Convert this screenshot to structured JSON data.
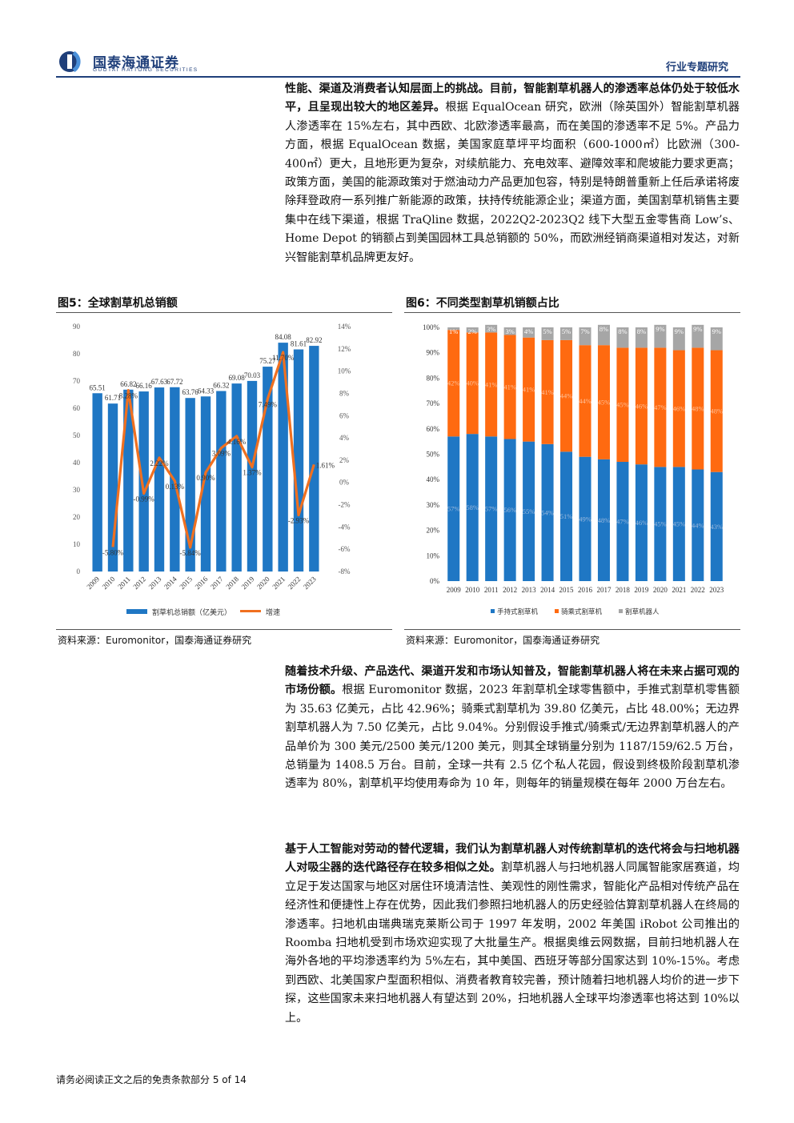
{
  "header": {
    "logo_cn": "国泰海通证券",
    "logo_en": "GUOTAI HAITONG SECURITIES",
    "section": "行业专题研究"
  },
  "para1": {
    "bold": "性能、渠道及消费者认知层面上的挑战。目前，智能割草机器人的渗透率总体仍处于较低水平，且呈现出较大的地区差异。",
    "text": "根据 EqualOcean 研究，欧洲（除英国外）智能割草机器人渗透率在 15%左右，其中西欧、北欧渗透率最高，而在美国的渗透率不足 5%。产品力方面，根据 EqualOcean 数据，美国家庭草坪平均面积（600-1000㎡）比欧洲（300-400㎡）更大，且地形更为复杂，对续航能力、充电效率、避障效率和爬坡能力要求更高；政策方面，美国的能源政策对于燃油动力产品更加包容，特别是特朗普重新上任后承诺将废除拜登政府一系列推广新能源的政策，扶持传统能源企业；渠道方面，美国割草机销售主要集中在线下渠道，根据 TraQline 数据，2022Q2-2023Q2 线下大型五金零售商 Low’s、Home Depot 的销额占到美国园林工具总销额的 50%，而欧洲经销商渠道相对发达，对新兴智能割草机品牌更友好。"
  },
  "fig5": {
    "title": "图5：全球割草机总销额",
    "source": "资料来源：Euromonitor，国泰海通证券研究"
  },
  "fig6": {
    "title": "图6：不同类型割草机销额占比",
    "source": "资料来源：Euromonitor，国泰海通证券研究"
  },
  "chart_data": [
    {
      "type": "bar",
      "categories": [
        "2009",
        "2010",
        "2011",
        "2012",
        "2013",
        "2014",
        "2015",
        "2016",
        "2017",
        "2018",
        "2019",
        "2020",
        "2021",
        "2022",
        "2023"
      ],
      "series": [
        {
          "name": "割草机总销额（亿美元）",
          "type": "bar",
          "axis": "left",
          "values": [
            65.51,
            61.71,
            66.82,
            66.16,
            67.63,
            67.72,
            63.76,
            64.33,
            66.32,
            69.08,
            70.03,
            75.27,
            84.08,
            81.61,
            82.92
          ],
          "labels": [
            "65.51",
            "61.71",
            "66.82",
            "66.16",
            "67.63",
            "67.72",
            "63.76",
            "64.33",
            "66.32",
            "69.08",
            "70.03",
            "75.27",
            "84.08",
            "81.61",
            "82.92"
          ]
        },
        {
          "name": "增速",
          "type": "line",
          "axis": "right",
          "values": [
            null,
            -5.8,
            8.28,
            -0.99,
            2.22,
            0.13,
            -5.84,
            0.9,
            3.09,
            4.16,
            1.37,
            7.49,
            11.7,
            -2.93,
            1.61
          ],
          "labels": [
            "",
            "-5.80%",
            "8.28%",
            "-0.99%",
            "2.22%",
            "0.13%",
            "-5.84%",
            "0.90%",
            "3.09%",
            "4.16%",
            "1.37%",
            "7.49%",
            "11.70%",
            "-2.93%",
            "1.61%"
          ]
        }
      ],
      "ylim": [
        0,
        90
      ],
      "y_ticks": [
        "0",
        "10",
        "20",
        "30",
        "40",
        "50",
        "60",
        "70",
        "80",
        "90"
      ],
      "y2lim": [
        -8,
        14
      ],
      "y2_ticks": [
        "-8%",
        "-6%",
        "-4%",
        "-2%",
        "0%",
        "2%",
        "4%",
        "6%",
        "8%",
        "10%",
        "12%",
        "14%"
      ],
      "colors": {
        "bar": "#1f77c4",
        "line": "#f07020"
      },
      "legend": "bottom"
    },
    {
      "type": "bar",
      "stacked": true,
      "categories": [
        "2009",
        "2010",
        "2011",
        "2012",
        "2013",
        "2014",
        "2015",
        "2016",
        "2017",
        "2018",
        "2019",
        "2020",
        "2021",
        "2022",
        "2023"
      ],
      "series": [
        {
          "name": "手持式割草机",
          "values": [
            57,
            58,
            57,
            56,
            55,
            54,
            51,
            49,
            48,
            47,
            46,
            45,
            45,
            44,
            43
          ],
          "labels": [
            "57%",
            "58%",
            "57%",
            "56%",
            "55%",
            "54%",
            "51%",
            "49%",
            "48%",
            "47%",
            "46%",
            "45%",
            "45%",
            "44%",
            "43%"
          ]
        },
        {
          "name": "骑乘式割草机",
          "values": [
            42,
            40,
            41,
            41,
            41,
            41,
            44,
            44,
            45,
            45,
            46,
            47,
            46,
            48,
            48
          ],
          "labels": [
            "42%",
            "40%",
            "41%",
            "41%",
            "41%",
            "41%",
            "44%",
            "44%",
            "45%",
            "45%",
            "46%",
            "47%",
            "46%",
            "48%",
            "48%"
          ]
        },
        {
          "name": "割草机器人",
          "values": [
            1,
            2,
            3,
            3,
            4,
            5,
            5,
            7,
            8,
            8,
            8,
            9,
            9,
            9,
            9
          ],
          "labels": [
            "1%",
            "2%",
            "3%",
            "3%",
            "4%",
            "5%",
            "5%",
            "7%",
            "8%",
            "8%",
            "8%",
            "9%",
            "9%",
            "9%",
            "9%"
          ]
        }
      ],
      "ylim": [
        0,
        100
      ],
      "y_ticks": [
        "0%",
        "10%",
        "20%",
        "30%",
        "40%",
        "50%",
        "60%",
        "70%",
        "80%",
        "90%",
        "100%"
      ],
      "colors": {
        "handheld": "#1f77c4",
        "riding": "#ff6a10",
        "robot": "#a6a6a6"
      },
      "legend": "bottom"
    }
  ],
  "para2": {
    "bold": "随着技术升级、产品迭代、渠道开发和市场认知普及，智能割草机器人将在未来占据可观的市场份额。",
    "text": "根据 Euromonitor 数据，2023 年割草机全球零售额中，手推式割草机零售额为 35.63 亿美元，占比 42.96%；骑乘式割草机为 39.80 亿美元，占比 48.00%；无边界割草机器人为 7.50 亿美元，占比 9.04%。分别假设手推式/骑乘式/无边界割草机器人的产品单价为 300 美元/2500 美元/1200 美元，则其全球销量分别为 1187/159/62.5 万台，总销量为 1408.5 万台。目前，全球一共有 2.5 亿个私人花园，假设到终极阶段割草机渗透率为 80%，割草机平均使用寿命为 10 年，则每年的销量规模在每年 2000 万台左右。"
  },
  "para3": {
    "bold": "基于人工智能对劳动的替代逻辑，我们认为割草机器人对传统割草机的迭代将会与扫地机器人对吸尘器的迭代路径存在较多相似之处。",
    "text": "割草机器人与扫地机器人同属智能家居赛道，均立足于发达国家与地区对居住环境清洁性、美观性的刚性需求，智能化产品相对传统产品在经济性和便捷性上存在优势，因此我们参照扫地机器人的历史经验估算割草机器人在终局的渗透率。扫地机由瑞典瑞克莱斯公司于 1997 年发明，2002 年美国 iRobot 公司推出的 Roomba 扫地机受到市场欢迎实现了大批量生产。根据奥维云网数据，目前扫地机器人在海外各地的平均渗透率约为 5%左右，其中美国、西班牙等部分国家达到 10%-15%。考虑到西欧、北美国家户型面积相似、消费者教育较完善，预计随着扫地机器人均价的进一步下探，这些国家未来扫地机器人有望达到 20%，扫地机器人全球平均渗透率也将达到 10%以上。"
  },
  "footer": "请务必阅读正文之后的免责条款部分 5 of 14"
}
